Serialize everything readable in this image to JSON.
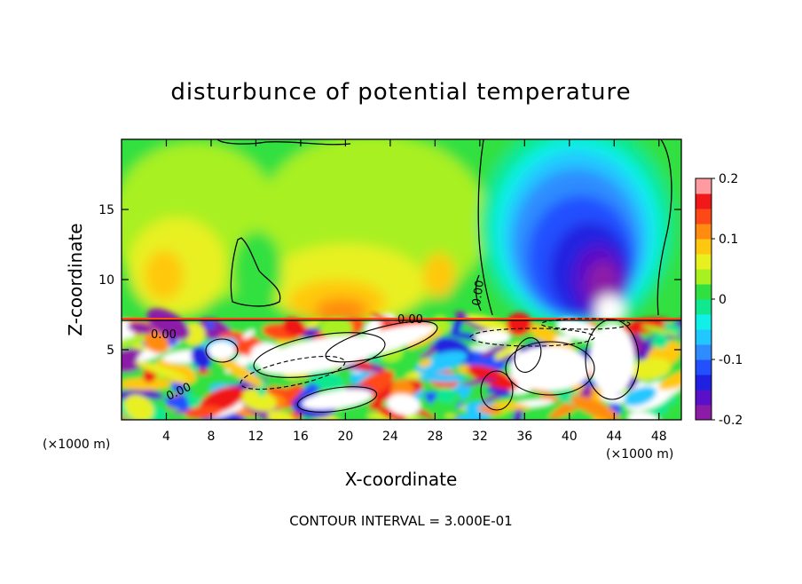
{
  "chart_data": {
    "type": "heatmap",
    "title": "disturbunce of potential temperature",
    "xlabel": "X-coordinate",
    "ylabel": "Z-coordinate",
    "x_unit": "(×1000 m)",
    "y_unit": "(×1000 m)",
    "xlim": [
      0,
      50
    ],
    "ylim": [
      0,
      20
    ],
    "x_ticks": [
      4,
      8,
      12,
      16,
      20,
      24,
      28,
      32,
      36,
      40,
      44,
      48
    ],
    "y_ticks": [
      5,
      10,
      15
    ],
    "colorbar": {
      "range": [
        -0.2,
        0.2
      ],
      "ticks": [
        "0.2",
        "0.1",
        "0",
        "-0.1",
        "-0.2"
      ],
      "ticks_values": [
        0.2,
        0.1,
        0,
        -0.1,
        -0.2
      ],
      "levels": 16,
      "colors": [
        "#8c1ca8",
        "#5a10c8",
        "#2020e0",
        "#2250ff",
        "#2e8cff",
        "#20c8ff",
        "#10f0e8",
        "#10e890",
        "#30e040",
        "#a8f020",
        "#e8f020",
        "#ffc810",
        "#ff8c10",
        "#ff4818",
        "#f01818",
        "#ff9aa0"
      ]
    },
    "contour_labels": [
      "0.00",
      "0.00",
      "0.00",
      "0.00"
    ],
    "footer": "CONTOUR INTERVAL = 3.000E-01"
  }
}
